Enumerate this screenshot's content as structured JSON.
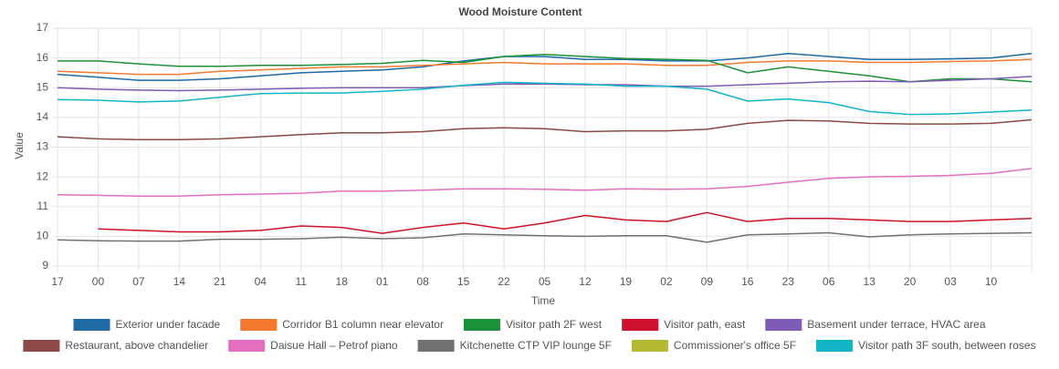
{
  "chart_data": {
    "type": "line",
    "title": "Wood Moisture Content",
    "x_label": "Time",
    "y_label": "Value",
    "categories": [
      "17",
      "00",
      "07",
      "14",
      "21",
      "04",
      "11",
      "18",
      "01",
      "08",
      "15",
      "22",
      "05",
      "12",
      "19",
      "02",
      "09",
      "16",
      "23",
      "06",
      "13",
      "20",
      "03",
      "10",
      null
    ],
    "ylim": [
      9,
      17
    ],
    "yticks": [
      9,
      10,
      11,
      12,
      13,
      14,
      15,
      16,
      17
    ],
    "grid": true,
    "legend": "bottom",
    "series": [
      {
        "name": "Exterior under facade",
        "color": "#1f6aa3",
        "values": [
          15.45,
          15.35,
          15.25,
          15.25,
          15.3,
          15.4,
          15.5,
          15.55,
          15.6,
          15.7,
          15.9,
          16.05,
          16.05,
          15.95,
          15.95,
          15.9,
          15.9,
          16.0,
          16.15,
          16.05,
          15.95,
          15.95,
          15.97,
          16.0,
          16.15
        ]
      },
      {
        "name": "Corridor B1 column near elevator",
        "color": "#f47a30",
        "values": [
          15.55,
          15.5,
          15.45,
          15.45,
          15.55,
          15.6,
          15.65,
          15.7,
          15.7,
          15.75,
          15.8,
          15.85,
          15.8,
          15.8,
          15.8,
          15.75,
          15.75,
          15.85,
          15.9,
          15.9,
          15.85,
          15.85,
          15.88,
          15.9,
          15.95
        ]
      },
      {
        "name": "Visitor path 2F west",
        "color": "#1b9138",
        "values": [
          15.9,
          15.9,
          15.8,
          15.72,
          15.72,
          15.75,
          15.75,
          15.78,
          15.82,
          15.92,
          15.85,
          16.05,
          16.12,
          16.05,
          15.98,
          15.95,
          15.92,
          15.5,
          15.7,
          15.55,
          15.4,
          15.2,
          15.3,
          15.3,
          15.2
        ]
      },
      {
        "name": "Visitor path, east",
        "color": "#d0112b",
        "values": [
          null,
          10.25,
          10.2,
          10.15,
          10.15,
          10.2,
          10.35,
          10.3,
          10.1,
          10.3,
          10.45,
          10.25,
          10.45,
          10.7,
          10.55,
          10.5,
          10.8,
          10.5,
          10.6,
          10.6,
          10.55,
          10.5,
          10.5,
          10.55,
          10.6
        ]
      },
      {
        "name": "Basement under terrace, HVAC area",
        "color": "#7e5bb5",
        "values": [
          15.0,
          14.95,
          14.92,
          14.9,
          14.92,
          14.95,
          14.98,
          15.0,
          15.0,
          15.0,
          15.07,
          15.12,
          15.12,
          15.1,
          15.1,
          15.05,
          15.05,
          15.1,
          15.15,
          15.2,
          15.22,
          15.2,
          15.25,
          15.3,
          15.38
        ]
      },
      {
        "name": "Restaurant, above chandelier",
        "color": "#8b4a45",
        "values": [
          13.35,
          13.28,
          13.25,
          13.25,
          13.28,
          13.35,
          13.42,
          13.48,
          13.48,
          13.52,
          13.62,
          13.65,
          13.62,
          13.52,
          13.55,
          13.55,
          13.6,
          13.8,
          13.9,
          13.88,
          13.8,
          13.78,
          13.78,
          13.8,
          13.92
        ]
      },
      {
        "name": "Daisue Hall – Petrof piano",
        "color": "#e46fc0",
        "values": [
          11.4,
          11.38,
          11.35,
          11.35,
          11.4,
          11.42,
          11.45,
          11.52,
          11.52,
          11.55,
          11.6,
          11.6,
          11.58,
          11.55,
          11.6,
          11.58,
          11.6,
          11.68,
          11.82,
          11.95,
          12.0,
          12.02,
          12.05,
          12.12,
          12.28
        ]
      },
      {
        "name": "Kitchenette CTP VIP lounge 5F",
        "color": "#717171",
        "values": [
          9.88,
          9.85,
          9.84,
          9.84,
          9.9,
          9.9,
          9.92,
          9.97,
          9.92,
          9.95,
          10.08,
          10.05,
          10.02,
          10.0,
          10.02,
          10.02,
          9.8,
          10.05,
          10.08,
          10.12,
          9.98,
          10.05,
          10.08,
          10.1,
          10.12
        ]
      },
      {
        "name": "Commissioner's office 5F",
        "color": "#b5b831",
        "values": [
          null,
          null,
          null,
          null,
          null,
          null,
          null,
          null,
          null,
          null,
          null,
          null,
          null,
          null,
          null,
          null,
          null,
          null,
          null,
          null,
          null,
          null,
          null,
          null,
          null
        ]
      },
      {
        "name": "Visitor path 3F south, between roses",
        "color": "#12b5c6",
        "values": [
          14.6,
          14.58,
          14.52,
          14.55,
          14.68,
          14.8,
          14.82,
          14.82,
          14.88,
          14.95,
          15.08,
          15.18,
          15.15,
          15.12,
          15.05,
          15.05,
          14.95,
          14.55,
          14.62,
          14.5,
          14.2,
          14.1,
          14.12,
          14.18,
          14.25
        ]
      }
    ]
  }
}
